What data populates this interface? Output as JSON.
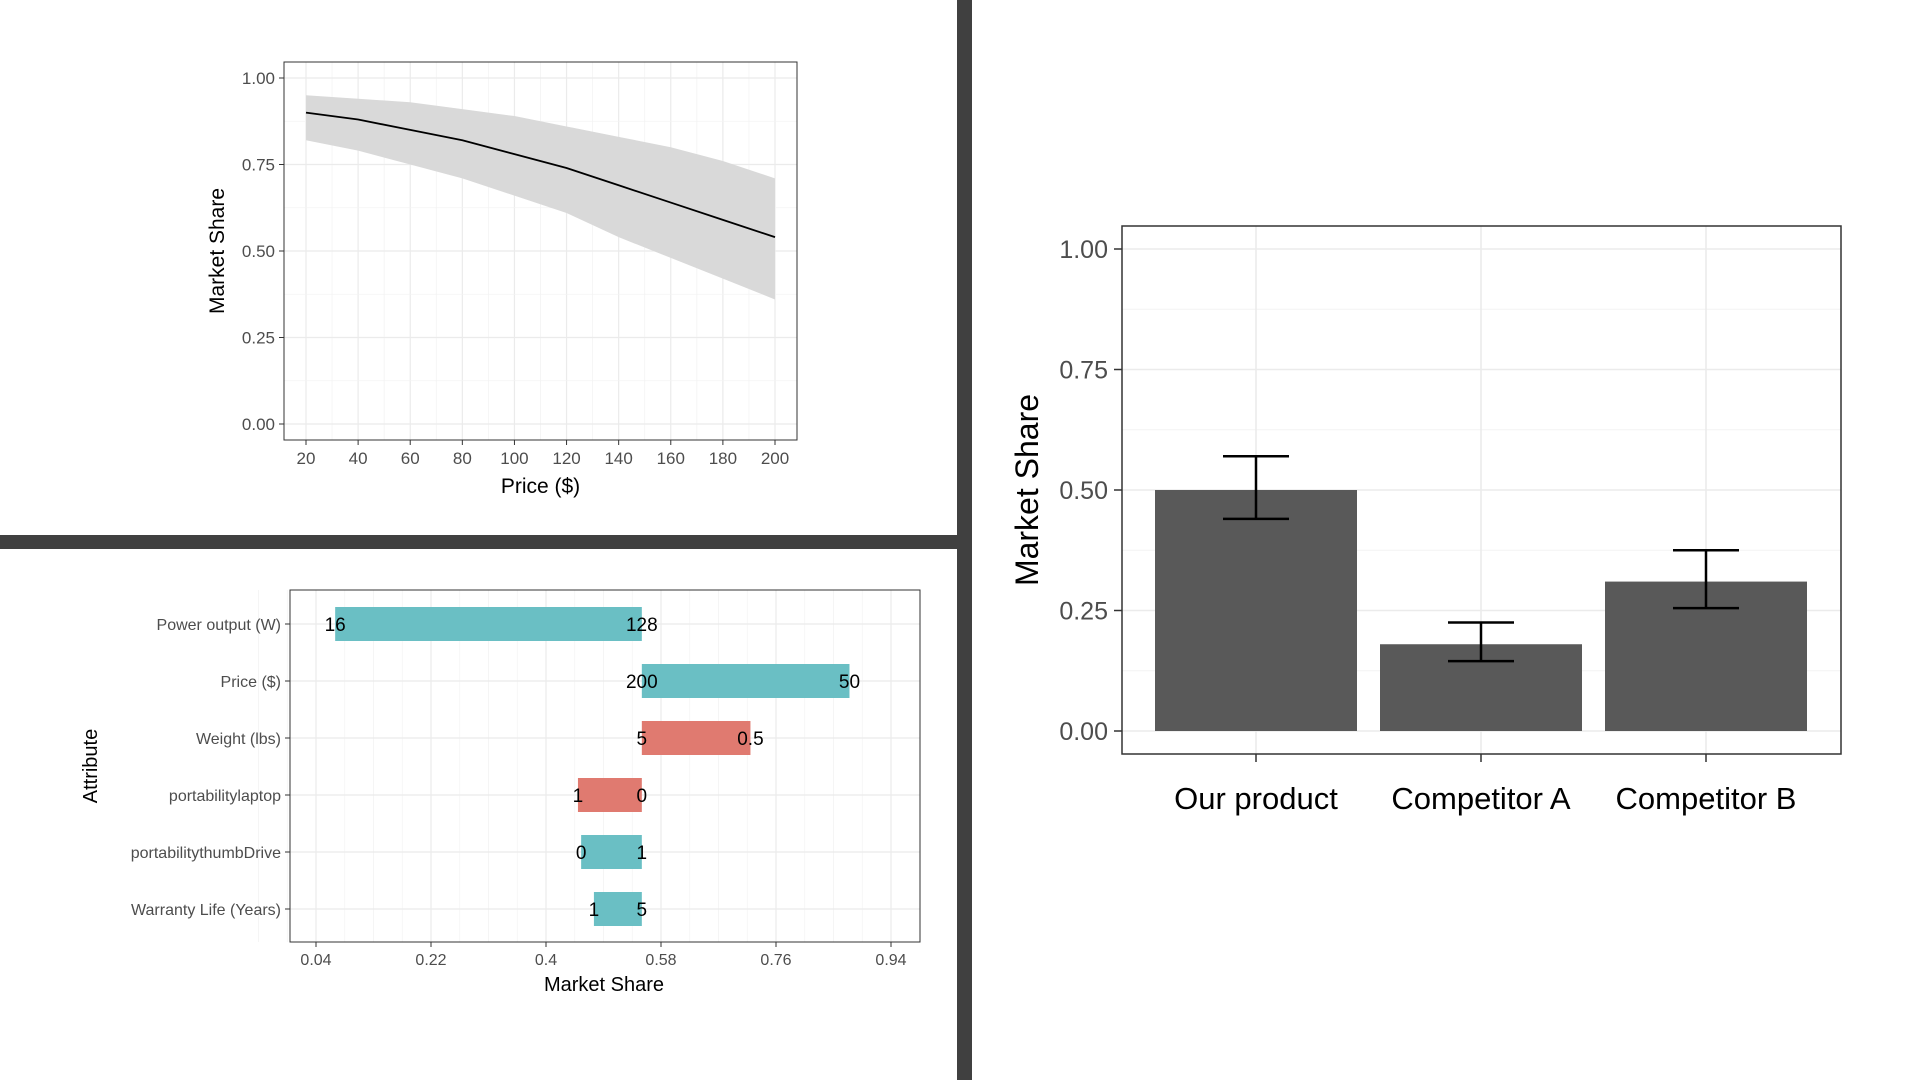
{
  "chart_data": [
    {
      "type": "area",
      "title": "",
      "xlabel": "Price ($)",
      "ylabel": "Market Share",
      "xlim": [
        20,
        200
      ],
      "ylim": [
        0,
        1
      ],
      "x_ticks": [
        "20",
        "40",
        "60",
        "80",
        "100",
        "120",
        "140",
        "160",
        "180",
        "200"
      ],
      "y_ticks": [
        "0.00",
        "0.25",
        "0.50",
        "0.75",
        "1.00"
      ],
      "grid": true,
      "series": [
        {
          "x": [
            20,
            40,
            60,
            80,
            100,
            120,
            140,
            160,
            180,
            200
          ],
          "y": [
            0.9,
            0.88,
            0.85,
            0.82,
            0.78,
            0.74,
            0.69,
            0.64,
            0.59,
            0.54
          ],
          "lower": [
            0.82,
            0.79,
            0.75,
            0.71,
            0.66,
            0.61,
            0.54,
            0.48,
            0.42,
            0.36
          ],
          "upper": [
            0.95,
            0.94,
            0.93,
            0.91,
            0.89,
            0.86,
            0.83,
            0.8,
            0.76,
            0.71
          ]
        }
      ],
      "colors": {
        "line": "#000000",
        "ribbon": "#d9d9d9",
        "panel_border": "#333333",
        "grid": "#ebebeb"
      }
    },
    {
      "type": "bar",
      "title": "",
      "xlabel": "Market Share",
      "ylabel": "Attribute",
      "xlim": [
        0.0,
        1.0
      ],
      "x_ticks": [
        "0.04",
        "0.22",
        "0.4",
        "0.58",
        "0.76",
        "0.94"
      ],
      "grid": true,
      "categories": [
        "Power output (W)",
        "Price ($)",
        "Weight (lbs)",
        "portabilitylaptop",
        "portabilitythumbDrive",
        "Warranty Life (Years)"
      ],
      "bars": [
        {
          "start": 0.07,
          "end": 0.55,
          "start_label": "16",
          "end_label": "128",
          "color": "#6abfc4"
        },
        {
          "start": 0.55,
          "end": 0.875,
          "start_label": "200",
          "end_label": "50",
          "color": "#6abfc4"
        },
        {
          "start": 0.55,
          "end": 0.72,
          "start_label": "5",
          "end_label": "0.5",
          "color": "#e07a70"
        },
        {
          "start": 0.45,
          "end": 0.55,
          "start_label": "1",
          "end_label": "0",
          "color": "#e07a70"
        },
        {
          "start": 0.455,
          "end": 0.55,
          "start_label": "0",
          "end_label": "1",
          "color": "#6abfc4"
        },
        {
          "start": 0.475,
          "end": 0.55,
          "start_label": "1",
          "end_label": "5",
          "color": "#6abfc4"
        }
      ]
    },
    {
      "type": "bar",
      "title": "",
      "xlabel": "",
      "ylabel": "Market Share",
      "ylim": [
        0,
        1.05
      ],
      "y_ticks": [
        "0.00",
        "0.25",
        "0.50",
        "0.75",
        "1.00"
      ],
      "grid": true,
      "categories": [
        "Our product",
        "Competitor A",
        "Competitor B"
      ],
      "values": [
        0.5,
        0.18,
        0.31
      ],
      "err_low": [
        0.44,
        0.145,
        0.255
      ],
      "err_high": [
        0.57,
        0.225,
        0.375
      ],
      "colors": {
        "bar": "#595959",
        "error": "#000000"
      }
    }
  ]
}
